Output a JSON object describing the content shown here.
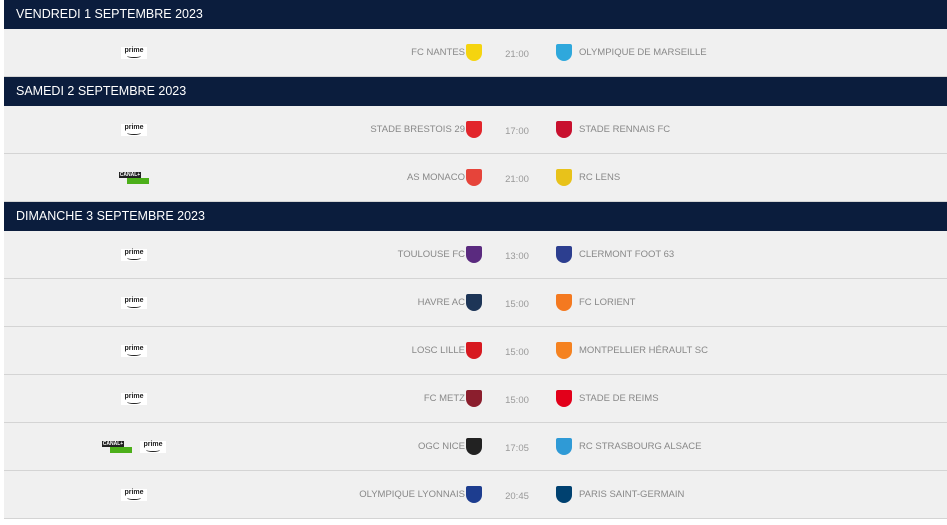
{
  "days": [
    {
      "label": "VENDREDI 1 SEPTEMBRE 2023",
      "matches": [
        {
          "broadcasters": [
            "prime"
          ],
          "home": "FC NANTES",
          "home_color": "#f5d40f",
          "time": "21:00",
          "away": "OLYMPIQUE DE MARSEILLE",
          "away_color": "#2fa8dc"
        }
      ]
    },
    {
      "label": "SAMEDI 2 SEPTEMBRE 2023",
      "matches": [
        {
          "broadcasters": [
            "prime"
          ],
          "home": "STADE BRESTOIS 29",
          "home_color": "#e2252b",
          "time": "17:00",
          "away": "STADE RENNAIS FC",
          "away_color": "#c8102e"
        },
        {
          "broadcasters": [
            "canal+"
          ],
          "home": "AS MONACO",
          "home_color": "#e6443a",
          "time": "21:00",
          "away": "RC LENS",
          "away_color": "#e8c21a"
        }
      ]
    },
    {
      "label": "DIMANCHE 3 SEPTEMBRE 2023",
      "matches": [
        {
          "broadcasters": [
            "prime"
          ],
          "home": "TOULOUSE FC",
          "home_color": "#5a2a7f",
          "time": "13:00",
          "away": "CLERMONT FOOT 63",
          "away_color": "#2c3e8f"
        },
        {
          "broadcasters": [
            "prime"
          ],
          "home": "HAVRE AC",
          "home_color": "#1d3557",
          "time": "15:00",
          "away": "FC LORIENT",
          "away_color": "#f47920"
        },
        {
          "broadcasters": [
            "prime"
          ],
          "home": "LOSC LILLE",
          "home_color": "#d71920",
          "time": "15:00",
          "away": "MONTPELLIER HÉRAULT SC",
          "away_color": "#f58220"
        },
        {
          "broadcasters": [
            "prime"
          ],
          "home": "FC METZ",
          "home_color": "#8b1e2d",
          "time": "15:00",
          "away": "STADE DE REIMS",
          "away_color": "#e2001a"
        },
        {
          "broadcasters": [
            "canal+",
            "prime"
          ],
          "home": "OGC NICE",
          "home_color": "#222222",
          "time": "17:05",
          "away": "RC STRASBOURG ALSACE",
          "away_color": "#2f9ad6"
        },
        {
          "broadcasters": [
            "prime"
          ],
          "home": "OLYMPIQUE LYONNAIS",
          "home_color": "#1d3d8f",
          "time": "20:45",
          "away": "PARIS SAINT-GERMAIN",
          "away_color": "#004170"
        }
      ]
    }
  ]
}
